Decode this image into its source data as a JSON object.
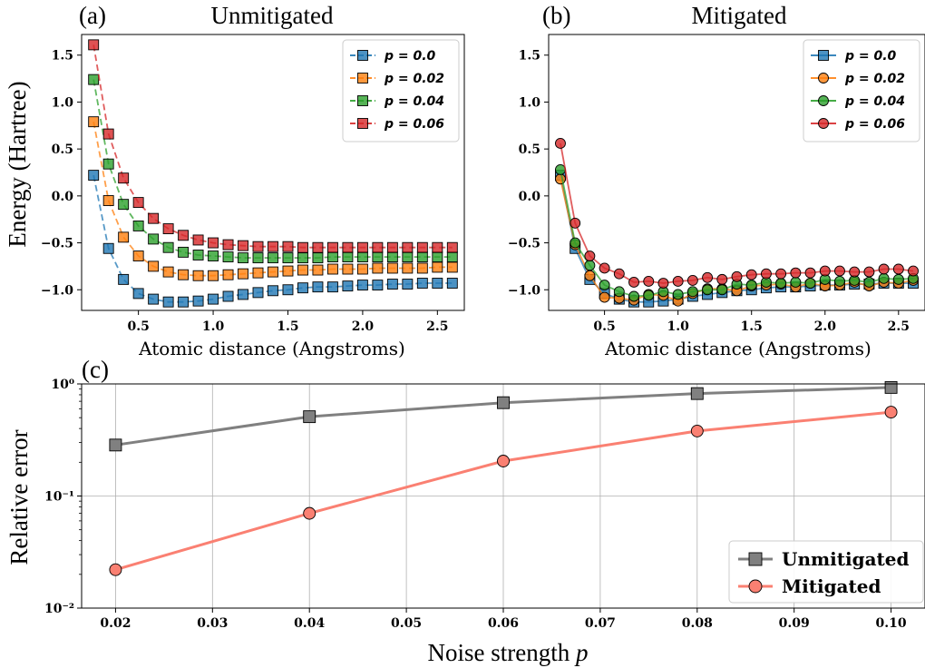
{
  "colors": {
    "blue": "#1f77b4",
    "orange": "#ff7f0e",
    "green": "#2ca02c",
    "red": "#d62728",
    "gray": "#808080",
    "salmon": "#fa8072"
  },
  "chart_data": [
    {
      "type": "line",
      "panel_label": "(a)",
      "title": "Unmitigated",
      "xlabel": "Atomic distance (Angstroms)",
      "ylabel": "Energy (Hartree)",
      "xlim": [
        0.12,
        2.68
      ],
      "ylim": [
        -1.22,
        1.72
      ],
      "xticks": [
        "0.5",
        "1.0",
        "1.5",
        "2.0",
        "2.5"
      ],
      "yticks": [
        "1.5",
        "1.0",
        "0.5",
        "0.0",
        "−0.5",
        "−1.0"
      ],
      "linestyle": "dashed",
      "marker": "square",
      "legend_position": "top-right",
      "x": [
        0.2,
        0.3,
        0.4,
        0.5,
        0.6,
        0.7,
        0.8,
        0.9,
        1.0,
        1.1,
        1.2,
        1.3,
        1.4,
        1.5,
        1.6,
        1.7,
        1.8,
        1.9,
        2.0,
        2.1,
        2.2,
        2.3,
        2.4,
        2.5,
        2.6
      ],
      "series": [
        {
          "name": "p = 0.0",
          "color": "#1f77b4",
          "values": [
            0.22,
            -0.56,
            -0.89,
            -1.04,
            -1.1,
            -1.13,
            -1.13,
            -1.12,
            -1.1,
            -1.07,
            -1.05,
            -1.03,
            -1.01,
            -1.0,
            -0.98,
            -0.97,
            -0.97,
            -0.96,
            -0.95,
            -0.95,
            -0.94,
            -0.94,
            -0.93,
            -0.93,
            -0.93
          ]
        },
        {
          "name": "p = 0.02",
          "color": "#ff7f0e",
          "values": [
            0.79,
            -0.05,
            -0.44,
            -0.64,
            -0.75,
            -0.81,
            -0.84,
            -0.85,
            -0.85,
            -0.84,
            -0.83,
            -0.82,
            -0.81,
            -0.8,
            -0.79,
            -0.79,
            -0.78,
            -0.78,
            -0.78,
            -0.77,
            -0.77,
            -0.77,
            -0.77,
            -0.76,
            -0.76
          ]
        },
        {
          "name": "p = 0.04",
          "color": "#2ca02c",
          "values": [
            1.24,
            0.34,
            -0.09,
            -0.32,
            -0.46,
            -0.55,
            -0.6,
            -0.63,
            -0.64,
            -0.65,
            -0.66,
            -0.66,
            -0.66,
            -0.66,
            -0.66,
            -0.66,
            -0.65,
            -0.65,
            -0.65,
            -0.65,
            -0.65,
            -0.65,
            -0.65,
            -0.65,
            -0.65
          ]
        },
        {
          "name": "p = 0.06",
          "color": "#d62728",
          "values": [
            1.61,
            0.66,
            0.19,
            -0.07,
            -0.24,
            -0.35,
            -0.42,
            -0.47,
            -0.5,
            -0.52,
            -0.53,
            -0.54,
            -0.54,
            -0.54,
            -0.55,
            -0.55,
            -0.55,
            -0.55,
            -0.55,
            -0.55,
            -0.55,
            -0.55,
            -0.55,
            -0.55,
            -0.55
          ]
        }
      ]
    },
    {
      "type": "line",
      "panel_label": "(b)",
      "title": "Mitigated",
      "xlabel": "Atomic distance (Angstroms)",
      "ylabel": "",
      "xlim": [
        0.12,
        2.68
      ],
      "ylim": [
        -1.22,
        1.72
      ],
      "xticks": [
        "0.5",
        "1.0",
        "1.5",
        "2.0",
        "2.5"
      ],
      "yticks": [
        "1.5",
        "1.0",
        "0.5",
        "0.0",
        "−0.5",
        "−1.0"
      ],
      "linestyle": "solid",
      "legend_position": "top-right",
      "x": [
        0.2,
        0.3,
        0.4,
        0.5,
        0.6,
        0.7,
        0.8,
        0.9,
        1.0,
        1.1,
        1.2,
        1.3,
        1.4,
        1.5,
        1.6,
        1.7,
        1.8,
        1.9,
        2.0,
        2.1,
        2.2,
        2.3,
        2.4,
        2.5,
        2.6
      ],
      "series": [
        {
          "name": "p = 0.0",
          "color": "#1f77b4",
          "marker": "square",
          "values": [
            0.22,
            -0.56,
            -0.89,
            -1.04,
            -1.1,
            -1.13,
            -1.13,
            -1.12,
            -1.1,
            -1.07,
            -1.05,
            -1.03,
            -1.01,
            -1.0,
            -0.98,
            -0.97,
            -0.97,
            -0.96,
            -0.95,
            -0.95,
            -0.94,
            -0.94,
            -0.93,
            -0.93,
            -0.93
          ]
        },
        {
          "name": "p = 0.02",
          "color": "#ff7f0e",
          "marker": "circle",
          "values": [
            0.18,
            -0.52,
            -0.85,
            -1.08,
            -1.09,
            -1.11,
            -1.05,
            -1.06,
            -1.12,
            -1.04,
            -0.99,
            -0.99,
            -1.01,
            -0.96,
            -0.95,
            -0.94,
            -0.97,
            -0.93,
            -0.96,
            -0.95,
            -0.92,
            -0.96,
            -0.92,
            -0.93,
            -0.9
          ]
        },
        {
          "name": "p = 0.04",
          "color": "#2ca02c",
          "marker": "circle",
          "values": [
            0.28,
            -0.5,
            -0.74,
            -0.95,
            -1.02,
            -1.07,
            -1.06,
            -1.02,
            -1.05,
            -1.02,
            -1.0,
            -1.0,
            -0.94,
            -0.95,
            -0.92,
            -0.93,
            -0.92,
            -0.93,
            -0.89,
            -0.91,
            -0.9,
            -0.92,
            -0.88,
            -0.89,
            -0.88
          ]
        },
        {
          "name": "p = 0.06",
          "color": "#d62728",
          "marker": "circle",
          "values": [
            0.56,
            -0.29,
            -0.64,
            -0.77,
            -0.83,
            -0.92,
            -0.91,
            -0.93,
            -0.91,
            -0.9,
            -0.87,
            -0.89,
            -0.86,
            -0.84,
            -0.83,
            -0.83,
            -0.82,
            -0.82,
            -0.8,
            -0.8,
            -0.81,
            -0.81,
            -0.78,
            -0.78,
            -0.8
          ]
        }
      ]
    },
    {
      "type": "line",
      "panel_label": "(c)",
      "title": "",
      "xlabel": "Noise strength",
      "xlabel_var": "p",
      "ylabel": "Relative error",
      "yscale": "log",
      "xlim": [
        0.0165,
        0.1035
      ],
      "ylim": [
        0.01,
        1.0
      ],
      "grid": true,
      "legend_position": "bottom-right",
      "xticks": [
        "0.02",
        "0.03",
        "0.04",
        "0.05",
        "0.06",
        "0.07",
        "0.08",
        "0.09",
        "0.10"
      ],
      "yticks": [
        "10⁰",
        "10⁻¹",
        "10⁻²"
      ],
      "x": [
        0.02,
        0.04,
        0.06,
        0.08,
        0.1
      ],
      "series": [
        {
          "name": "Unmitigated",
          "color": "#808080",
          "marker": "square",
          "values": [
            0.285,
            0.51,
            0.68,
            0.82,
            0.93
          ]
        },
        {
          "name": "Mitigated",
          "color": "#fa8072",
          "marker": "circle",
          "values": [
            0.022,
            0.07,
            0.205,
            0.38,
            0.56
          ]
        }
      ]
    }
  ]
}
